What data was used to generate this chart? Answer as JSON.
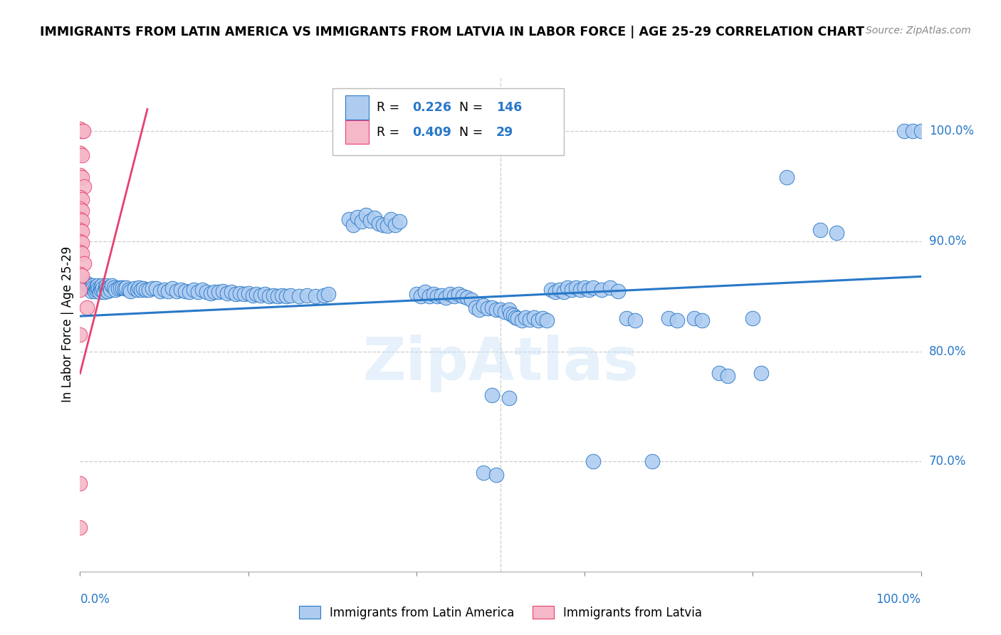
{
  "title": "IMMIGRANTS FROM LATIN AMERICA VS IMMIGRANTS FROM LATVIA IN LABOR FORCE | AGE 25-29 CORRELATION CHART",
  "source": "Source: ZipAtlas.com",
  "ylabel": "In Labor Force | Age 25-29",
  "y_tick_labels": [
    "100.0%",
    "90.0%",
    "80.0%",
    "70.0%"
  ],
  "y_tick_values": [
    1.0,
    0.9,
    0.8,
    0.7
  ],
  "legend_blue_r": "0.226",
  "legend_blue_n": "146",
  "legend_pink_r": "0.409",
  "legend_pink_n": "29",
  "legend_label_blue": "Immigrants from Latin America",
  "legend_label_pink": "Immigrants from Latvia",
  "blue_color": "#aeccf0",
  "pink_color": "#f5b8c8",
  "line_blue": "#2878c8",
  "line_pink": "#e84070",
  "watermark": "ZipAtlas",
  "xlim": [
    0.0,
    1.0
  ],
  "ylim": [
    0.6,
    1.05
  ],
  "blue_scatter": [
    [
      0.005,
      0.858
    ],
    [
      0.008,
      0.862
    ],
    [
      0.01,
      0.86
    ],
    [
      0.012,
      0.858
    ],
    [
      0.013,
      0.855
    ],
    [
      0.014,
      0.858
    ],
    [
      0.015,
      0.86
    ],
    [
      0.016,
      0.858
    ],
    [
      0.017,
      0.855
    ],
    [
      0.018,
      0.858
    ],
    [
      0.019,
      0.856
    ],
    [
      0.02,
      0.858
    ],
    [
      0.021,
      0.86
    ],
    [
      0.022,
      0.857
    ],
    [
      0.023,
      0.854
    ],
    [
      0.024,
      0.858
    ],
    [
      0.025,
      0.856
    ],
    [
      0.026,
      0.86
    ],
    [
      0.027,
      0.857
    ],
    [
      0.028,
      0.854
    ],
    [
      0.03,
      0.858
    ],
    [
      0.031,
      0.86
    ],
    [
      0.032,
      0.857
    ],
    [
      0.033,
      0.855
    ],
    [
      0.035,
      0.858
    ],
    [
      0.036,
      0.856
    ],
    [
      0.038,
      0.86
    ],
    [
      0.04,
      0.858
    ],
    [
      0.042,
      0.856
    ],
    [
      0.045,
      0.857
    ],
    [
      0.048,
      0.858
    ],
    [
      0.05,
      0.858
    ],
    [
      0.053,
      0.857
    ],
    [
      0.055,
      0.858
    ],
    [
      0.058,
      0.856
    ],
    [
      0.06,
      0.855
    ],
    [
      0.065,
      0.857
    ],
    [
      0.068,
      0.856
    ],
    [
      0.07,
      0.858
    ],
    [
      0.072,
      0.856
    ],
    [
      0.075,
      0.857
    ],
    [
      0.078,
      0.856
    ],
    [
      0.082,
      0.856
    ],
    [
      0.086,
      0.857
    ],
    [
      0.09,
      0.857
    ],
    [
      0.095,
      0.855
    ],
    [
      0.1,
      0.856
    ],
    [
      0.105,
      0.855
    ],
    [
      0.11,
      0.857
    ],
    [
      0.115,
      0.855
    ],
    [
      0.12,
      0.856
    ],
    [
      0.125,
      0.855
    ],
    [
      0.13,
      0.854
    ],
    [
      0.135,
      0.856
    ],
    [
      0.14,
      0.854
    ],
    [
      0.145,
      0.856
    ],
    [
      0.15,
      0.854
    ],
    [
      0.155,
      0.853
    ],
    [
      0.16,
      0.854
    ],
    [
      0.165,
      0.854
    ],
    [
      0.17,
      0.855
    ],
    [
      0.175,
      0.853
    ],
    [
      0.18,
      0.854
    ],
    [
      0.185,
      0.852
    ],
    [
      0.19,
      0.853
    ],
    [
      0.195,
      0.852
    ],
    [
      0.2,
      0.853
    ],
    [
      0.205,
      0.851
    ],
    [
      0.21,
      0.852
    ],
    [
      0.215,
      0.851
    ],
    [
      0.22,
      0.852
    ],
    [
      0.225,
      0.85
    ],
    [
      0.23,
      0.851
    ],
    [
      0.235,
      0.85
    ],
    [
      0.24,
      0.851
    ],
    [
      0.245,
      0.85
    ],
    [
      0.25,
      0.851
    ],
    [
      0.26,
      0.85
    ],
    [
      0.27,
      0.851
    ],
    [
      0.28,
      0.85
    ],
    [
      0.29,
      0.851
    ],
    [
      0.295,
      0.852
    ],
    [
      0.32,
      0.92
    ],
    [
      0.325,
      0.915
    ],
    [
      0.33,
      0.922
    ],
    [
      0.335,
      0.918
    ],
    [
      0.34,
      0.924
    ],
    [
      0.345,
      0.919
    ],
    [
      0.35,
      0.921
    ],
    [
      0.355,
      0.916
    ],
    [
      0.36,
      0.915
    ],
    [
      0.365,
      0.914
    ],
    [
      0.37,
      0.92
    ],
    [
      0.375,
      0.915
    ],
    [
      0.38,
      0.918
    ],
    [
      0.4,
      0.852
    ],
    [
      0.405,
      0.85
    ],
    [
      0.41,
      0.854
    ],
    [
      0.415,
      0.85
    ],
    [
      0.42,
      0.852
    ],
    [
      0.425,
      0.85
    ],
    [
      0.43,
      0.851
    ],
    [
      0.435,
      0.849
    ],
    [
      0.44,
      0.852
    ],
    [
      0.445,
      0.85
    ],
    [
      0.45,
      0.852
    ],
    [
      0.455,
      0.85
    ],
    [
      0.46,
      0.849
    ],
    [
      0.465,
      0.847
    ],
    [
      0.47,
      0.84
    ],
    [
      0.475,
      0.838
    ],
    [
      0.48,
      0.842
    ],
    [
      0.485,
      0.839
    ],
    [
      0.49,
      0.84
    ],
    [
      0.495,
      0.838
    ],
    [
      0.5,
      0.838
    ],
    [
      0.505,
      0.836
    ],
    [
      0.51,
      0.838
    ],
    [
      0.512,
      0.834
    ],
    [
      0.515,
      0.833
    ],
    [
      0.518,
      0.831
    ],
    [
      0.52,
      0.83
    ],
    [
      0.525,
      0.828
    ],
    [
      0.53,
      0.831
    ],
    [
      0.535,
      0.829
    ],
    [
      0.54,
      0.831
    ],
    [
      0.545,
      0.828
    ],
    [
      0.55,
      0.83
    ],
    [
      0.555,
      0.828
    ],
    [
      0.56,
      0.856
    ],
    [
      0.565,
      0.854
    ],
    [
      0.57,
      0.856
    ],
    [
      0.575,
      0.854
    ],
    [
      0.58,
      0.858
    ],
    [
      0.585,
      0.856
    ],
    [
      0.59,
      0.858
    ],
    [
      0.595,
      0.856
    ],
    [
      0.6,
      0.858
    ],
    [
      0.605,
      0.856
    ],
    [
      0.61,
      0.858
    ],
    [
      0.62,
      0.856
    ],
    [
      0.63,
      0.858
    ],
    [
      0.64,
      0.855
    ],
    [
      0.65,
      0.83
    ],
    [
      0.66,
      0.828
    ],
    [
      0.68,
      0.7
    ],
    [
      0.7,
      0.83
    ],
    [
      0.71,
      0.828
    ],
    [
      0.73,
      0.83
    ],
    [
      0.74,
      0.828
    ],
    [
      0.76,
      0.78
    ],
    [
      0.77,
      0.778
    ],
    [
      0.8,
      0.83
    ],
    [
      0.81,
      0.78
    ],
    [
      0.84,
      0.958
    ],
    [
      0.88,
      0.91
    ],
    [
      0.9,
      0.908
    ],
    [
      0.98,
      1.0
    ],
    [
      0.99,
      1.0
    ],
    [
      1.0,
      1.0
    ],
    [
      0.49,
      0.76
    ],
    [
      0.51,
      0.758
    ],
    [
      0.48,
      0.69
    ],
    [
      0.495,
      0.688
    ],
    [
      0.61,
      0.7
    ]
  ],
  "pink_scatter": [
    [
      0.0,
      1.002
    ],
    [
      0.002,
      1.0
    ],
    [
      0.004,
      1.0
    ],
    [
      0.0,
      0.98
    ],
    [
      0.002,
      0.978
    ],
    [
      0.0,
      0.96
    ],
    [
      0.002,
      0.958
    ],
    [
      0.005,
      0.95
    ],
    [
      0.0,
      0.94
    ],
    [
      0.002,
      0.938
    ],
    [
      0.0,
      0.93
    ],
    [
      0.002,
      0.928
    ],
    [
      0.0,
      0.92
    ],
    [
      0.002,
      0.919
    ],
    [
      0.0,
      0.91
    ],
    [
      0.002,
      0.909
    ],
    [
      0.0,
      0.9
    ],
    [
      0.002,
      0.899
    ],
    [
      0.0,
      0.89
    ],
    [
      0.002,
      0.889
    ],
    [
      0.005,
      0.88
    ],
    [
      0.0,
      0.87
    ],
    [
      0.002,
      0.869
    ],
    [
      0.0,
      0.856
    ],
    [
      0.008,
      0.84
    ],
    [
      0.0,
      0.815
    ],
    [
      0.0,
      0.68
    ],
    [
      0.0,
      0.64
    ]
  ],
  "blue_line_x": [
    0.0,
    1.0
  ],
  "blue_line_y": [
    0.832,
    0.868
  ],
  "pink_line_x": [
    0.0,
    0.08
  ],
  "pink_line_y": [
    0.78,
    1.02
  ]
}
